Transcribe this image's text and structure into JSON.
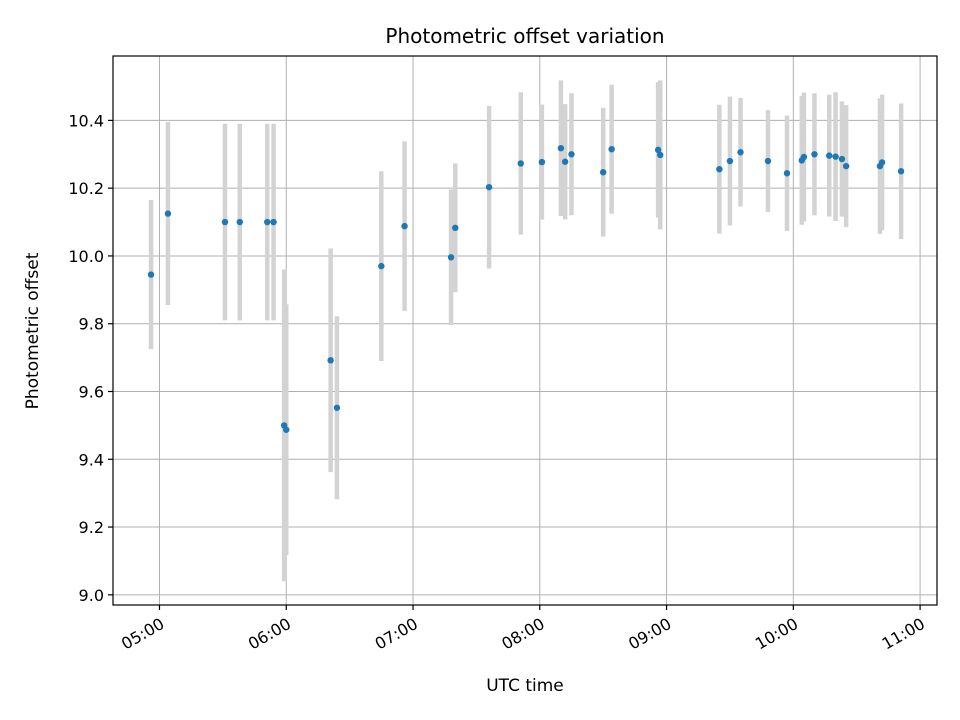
{
  "chart_data": {
    "type": "scatter",
    "title": "Photometric offset variation",
    "xlabel": "UTC time",
    "ylabel": "Photometric offset",
    "xlim": [
      "04:38",
      "11:08"
    ],
    "ylim": [
      8.97,
      10.59
    ],
    "x_ticks": [
      "05:00",
      "06:00",
      "07:00",
      "08:00",
      "09:00",
      "10:00",
      "11:00"
    ],
    "y_ticks": [
      9.0,
      9.2,
      9.4,
      9.6,
      9.8,
      10.0,
      10.2,
      10.4
    ],
    "grid": true,
    "legend": "none",
    "colors": {
      "point": "#1f77b4",
      "errorbar": "#d3d3d3",
      "grid": "#b0b0b0"
    },
    "series": [
      {
        "points": [
          {
            "x": "04:56",
            "y": 9.945,
            "err": 0.22
          },
          {
            "x": "05:04",
            "y": 10.125,
            "err": 0.27
          },
          {
            "x": "05:31",
            "y": 10.1,
            "err": 0.29
          },
          {
            "x": "05:38",
            "y": 10.1,
            "err": 0.29
          },
          {
            "x": "05:51",
            "y": 10.1,
            "err": 0.29
          },
          {
            "x": "05:54",
            "y": 10.1,
            "err": 0.29
          },
          {
            "x": "05:59",
            "y": 9.5,
            "err": 0.46
          },
          {
            "x": "06:00",
            "y": 9.487,
            "err": 0.37
          },
          {
            "x": "06:21",
            "y": 9.692,
            "err": 0.33
          },
          {
            "x": "06:24",
            "y": 9.552,
            "err": 0.27
          },
          {
            "x": "06:45",
            "y": 9.97,
            "err": 0.28
          },
          {
            "x": "06:56",
            "y": 10.088,
            "err": 0.25
          },
          {
            "x": "07:18",
            "y": 9.996,
            "err": 0.2
          },
          {
            "x": "07:20",
            "y": 10.083,
            "err": 0.19
          },
          {
            "x": "07:36",
            "y": 10.203,
            "err": 0.24
          },
          {
            "x": "07:51",
            "y": 10.273,
            "err": 0.21
          },
          {
            "x": "08:01",
            "y": 10.277,
            "err": 0.17
          },
          {
            "x": "08:10",
            "y": 10.318,
            "err": 0.2
          },
          {
            "x": "08:12",
            "y": 10.278,
            "err": 0.17
          },
          {
            "x": "08:15",
            "y": 10.3,
            "err": 0.18
          },
          {
            "x": "08:30",
            "y": 10.247,
            "err": 0.19
          },
          {
            "x": "08:34",
            "y": 10.315,
            "err": 0.19
          },
          {
            "x": "08:56",
            "y": 10.313,
            "err": 0.2
          },
          {
            "x": "08:57",
            "y": 10.298,
            "err": 0.22
          },
          {
            "x": "09:25",
            "y": 10.256,
            "err": 0.19
          },
          {
            "x": "09:30",
            "y": 10.28,
            "err": 0.19
          },
          {
            "x": "09:35",
            "y": 10.306,
            "err": 0.16
          },
          {
            "x": "09:48",
            "y": 10.28,
            "err": 0.15
          },
          {
            "x": "09:57",
            "y": 10.244,
            "err": 0.17
          },
          {
            "x": "10:04",
            "y": 10.282,
            "err": 0.19
          },
          {
            "x": "10:05",
            "y": 10.292,
            "err": 0.19
          },
          {
            "x": "10:10",
            "y": 10.3,
            "err": 0.18
          },
          {
            "x": "10:17",
            "y": 10.296,
            "err": 0.18
          },
          {
            "x": "10:20",
            "y": 10.293,
            "err": 0.19
          },
          {
            "x": "10:23",
            "y": 10.286,
            "err": 0.17
          },
          {
            "x": "10:25",
            "y": 10.265,
            "err": 0.18
          },
          {
            "x": "10:41",
            "y": 10.265,
            "err": 0.2
          },
          {
            "x": "10:42",
            "y": 10.276,
            "err": 0.2
          },
          {
            "x": "10:51",
            "y": 10.25,
            "err": 0.2
          }
        ]
      }
    ]
  }
}
